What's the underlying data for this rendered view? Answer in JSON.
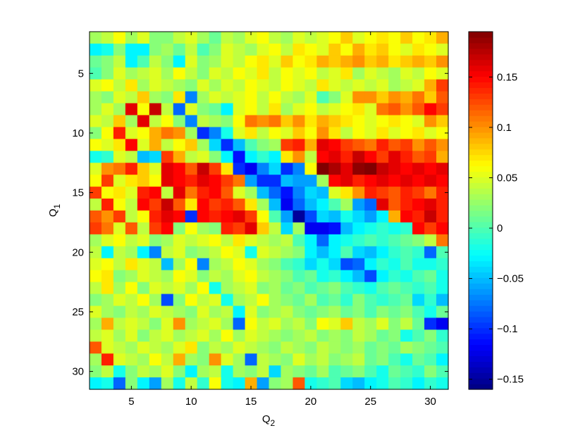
{
  "chart_data": {
    "type": "heatmap",
    "title": "",
    "xlabel": "Q",
    "xlabel_sub": "2",
    "ylabel": "Q",
    "ylabel_sub": "1",
    "xlim": [
      1.5,
      31.5
    ],
    "ylim": [
      1.5,
      31.5
    ],
    "x_ticks": [
      5,
      10,
      15,
      20,
      25,
      30
    ],
    "y_ticks": [
      5,
      10,
      15,
      20,
      25,
      30
    ],
    "y_axis_reversed": true,
    "colormap": "jet",
    "colorbar": {
      "min": -0.16,
      "max": 0.195,
      "ticks": [
        0.15,
        0.1,
        0.05,
        0,
        -0.05,
        -0.1,
        -0.15
      ],
      "tick_labels": [
        "0.15",
        "0.1",
        "0.05",
        "0",
        "−0.05",
        "−0.1",
        "−0.15"
      ]
    },
    "rows_Q1": [
      2,
      3,
      4,
      5,
      6,
      7,
      8,
      9,
      10,
      11,
      12,
      13,
      14,
      15,
      16,
      17,
      18,
      19,
      20,
      21,
      22,
      23,
      24,
      25,
      26,
      27,
      28,
      29,
      30,
      31
    ],
    "cols_Q2": [
      2,
      3,
      4,
      5,
      6,
      7,
      8,
      9,
      10,
      11,
      12,
      13,
      14,
      15,
      16,
      17,
      18,
      19,
      20,
      21,
      22,
      23,
      24,
      25,
      26,
      27,
      28,
      29,
      30,
      31
    ],
    "values": [
      [
        0.03,
        0.04,
        0.06,
        0.03,
        0.05,
        0.02,
        0.02,
        0.04,
        0.05,
        0.03,
        0.01,
        0.04,
        0.03,
        0.05,
        0.06,
        0.04,
        0.03,
        0.05,
        0.04,
        0.05,
        0.06,
        0.08,
        0.05,
        0.06,
        0.07,
        0.06,
        0.08,
        0.06,
        0.07,
        0.09
      ],
      [
        -0.03,
        -0.02,
        0.02,
        -0.03,
        -0.03,
        0.02,
        0.03,
        0.01,
        0.04,
        0.0,
        0.02,
        0.05,
        0.04,
        0.03,
        0.05,
        0.06,
        0.04,
        0.07,
        0.06,
        0.05,
        0.08,
        0.06,
        0.09,
        0.07,
        0.08,
        0.06,
        0.05,
        0.07,
        0.06,
        0.05
      ],
      [
        0.01,
        0.02,
        0.04,
        -0.03,
        0.0,
        0.04,
        0.02,
        -0.03,
        0.05,
        0.02,
        0.03,
        0.05,
        0.04,
        0.06,
        0.07,
        0.05,
        0.08,
        0.06,
        0.07,
        0.09,
        0.08,
        0.09,
        0.1,
        0.08,
        0.09,
        0.07,
        0.08,
        0.09,
        0.08,
        0.1
      ],
      [
        0.0,
        0.02,
        0.05,
        0.03,
        0.04,
        0.05,
        0.03,
        0.06,
        0.04,
        0.02,
        0.05,
        0.04,
        0.06,
        0.05,
        0.07,
        0.04,
        0.06,
        0.05,
        0.06,
        0.04,
        0.05,
        0.07,
        0.03,
        0.05,
        0.04,
        0.03,
        0.05,
        0.04,
        0.06,
        0.05
      ],
      [
        0.05,
        0.06,
        0.04,
        0.07,
        0.03,
        0.05,
        0.04,
        0.03,
        0.02,
        0.05,
        0.03,
        0.05,
        0.04,
        0.06,
        0.05,
        0.04,
        0.06,
        0.05,
        0.04,
        0.07,
        0.05,
        0.04,
        0.05,
        0.04,
        0.05,
        0.03,
        0.04,
        0.05,
        0.09,
        0.13
      ],
      [
        0.03,
        0.02,
        0.05,
        0.04,
        0.08,
        0.03,
        0.02,
        0.07,
        -0.07,
        0.03,
        0.05,
        0.04,
        0.05,
        0.06,
        0.04,
        0.06,
        0.04,
        0.03,
        0.05,
        0.0,
        0.02,
        0.05,
        0.1,
        0.1,
        0.08,
        0.1,
        0.09,
        0.11,
        0.08,
        0.12
      ],
      [
        0.03,
        0.05,
        0.03,
        0.16,
        0.06,
        0.17,
        0.04,
        -0.08,
        0.05,
        0.02,
        0.01,
        -0.03,
        0.05,
        0.06,
        0.04,
        0.07,
        0.03,
        0.05,
        0.06,
        0.04,
        0.05,
        0.06,
        0.07,
        0.05,
        0.11,
        0.12,
        0.1,
        0.12,
        0.15,
        0.13
      ],
      [
        0.05,
        0.04,
        0.08,
        0.03,
        0.16,
        0.04,
        0.06,
        0.02,
        -0.07,
        0.04,
        0.03,
        0.02,
        0.06,
        0.11,
        0.1,
        0.11,
        0.08,
        0.1,
        0.07,
        0.09,
        0.08,
        0.07,
        0.06,
        0.05,
        0.06,
        0.07,
        0.06,
        0.05,
        0.1,
        0.08
      ],
      [
        0.02,
        0.06,
        0.14,
        0.05,
        0.06,
        0.09,
        0.11,
        0.1,
        0.03,
        -0.1,
        -0.07,
        -0.02,
        0.05,
        0.07,
        0.04,
        0.06,
        0.05,
        0.08,
        0.06,
        0.1,
        0.07,
        0.04,
        0.06,
        0.05,
        0.07,
        0.05,
        0.06,
        0.07,
        0.05,
        0.06
      ],
      [
        0.06,
        0.05,
        0.07,
        0.15,
        0.05,
        0.09,
        0.04,
        0.06,
        0.08,
        0.03,
        -0.04,
        -0.1,
        -0.05,
        0.0,
        0.02,
        0.03,
        0.13,
        0.14,
        0.09,
        0.16,
        0.15,
        0.13,
        0.12,
        0.11,
        0.14,
        0.12,
        0.13,
        0.1,
        0.12,
        0.1
      ],
      [
        -0.02,
        -0.01,
        0.05,
        0.04,
        -0.05,
        -0.04,
        0.13,
        0.09,
        0.04,
        0.05,
        0.02,
        -0.03,
        -0.11,
        -0.03,
        -0.01,
        -0.03,
        0.07,
        0.1,
        0.04,
        0.15,
        0.16,
        0.14,
        0.17,
        0.15,
        0.13,
        0.16,
        0.14,
        0.12,
        0.13,
        0.09
      ],
      [
        0.05,
        0.1,
        0.11,
        0.14,
        0.08,
        0.05,
        0.16,
        0.15,
        0.12,
        0.17,
        0.13,
        0.07,
        -0.1,
        -0.12,
        -0.07,
        -0.04,
        -0.1,
        -0.07,
        0.06,
        0.2,
        0.18,
        0.16,
        0.19,
        0.2,
        0.17,
        0.16,
        0.15,
        0.16,
        0.15,
        0.16
      ],
      [
        0.06,
        0.13,
        0.05,
        0.07,
        0.08,
        0.06,
        0.16,
        0.15,
        0.14,
        0.16,
        0.15,
        0.13,
        0.11,
        -0.06,
        -0.1,
        -0.1,
        -0.05,
        -0.06,
        -0.06,
        0.03,
        0.15,
        0.16,
        0.14,
        0.15,
        0.16,
        0.15,
        0.16,
        0.15,
        0.16,
        0.15
      ],
      [
        0.13,
        0.06,
        0.07,
        0.05,
        0.14,
        0.15,
        0.04,
        0.16,
        0.11,
        0.14,
        0.15,
        0.12,
        0.05,
        0.03,
        -0.05,
        -0.08,
        -0.11,
        -0.07,
        -0.04,
        -0.05,
        0.05,
        0.07,
        0.1,
        0.14,
        0.13,
        0.12,
        0.14,
        0.13,
        0.11,
        0.14
      ],
      [
        0.04,
        0.14,
        0.06,
        0.04,
        0.15,
        0.13,
        0.17,
        0.12,
        0.07,
        0.15,
        0.13,
        0.14,
        0.12,
        0.07,
        0.03,
        -0.05,
        -0.12,
        -0.08,
        -0.05,
        -0.03,
        0.0,
        0.03,
        -0.06,
        -0.08,
        0.16,
        0.12,
        0.14,
        0.15,
        0.16,
        0.14
      ],
      [
        0.12,
        0.1,
        0.13,
        0.04,
        0.06,
        0.14,
        0.16,
        0.15,
        -0.1,
        0.15,
        0.14,
        0.15,
        0.16,
        0.13,
        0.06,
        0.0,
        -0.06,
        -0.15,
        -0.09,
        -0.04,
        -0.05,
        -0.02,
        -0.04,
        -0.06,
        -0.03,
        0.09,
        0.15,
        0.14,
        0.17,
        0.14
      ],
      [
        0.13,
        0.11,
        0.05,
        0.12,
        0.04,
        0.13,
        0.15,
        0.02,
        0.06,
        0.03,
        0.02,
        0.14,
        0.13,
        0.16,
        0.08,
        0.04,
        -0.04,
        0.03,
        -0.12,
        -0.12,
        -0.11,
        -0.05,
        -0.03,
        -0.02,
        -0.01,
        -0.02,
        -0.01,
        0.15,
        0.13,
        0.15
      ],
      [
        0.03,
        0.05,
        0.06,
        0.04,
        0.05,
        0.02,
        0.03,
        0.05,
        0.04,
        0.05,
        0.06,
        0.04,
        0.07,
        0.05,
        0.04,
        0.03,
        0.04,
        0.0,
        -0.03,
        -0.08,
        -0.03,
        -0.02,
        -0.01,
        0.0,
        -0.01,
        0.0,
        0.01,
        0.02,
        0.04,
        0.11
      ],
      [
        0.04,
        -0.03,
        0.04,
        0.03,
        -0.03,
        -0.07,
        0.04,
        0.05,
        0.02,
        0.03,
        0.04,
        0.06,
        0.05,
        -0.02,
        0.05,
        0.04,
        0.03,
        0.02,
        -0.03,
        -0.05,
        -0.03,
        0.0,
        -0.04,
        -0.05,
        -0.03,
        -0.01,
        0.0,
        -0.01,
        -0.08,
        0.0
      ],
      [
        0.05,
        0.06,
        0.04,
        0.07,
        0.05,
        0.04,
        -0.05,
        0.03,
        0.06,
        -0.07,
        0.03,
        0.04,
        0.06,
        0.05,
        0.03,
        0.02,
        0.0,
        -0.01,
        -0.04,
        -0.02,
        -0.04,
        -0.09,
        -0.08,
        -0.03,
        -0.01,
        -0.02,
        0.0,
        -0.02,
        -0.02,
        -0.01
      ],
      [
        0.06,
        0.07,
        0.02,
        0.03,
        0.05,
        0.04,
        0.03,
        0.06,
        0.05,
        0.02,
        0.04,
        0.03,
        0.05,
        0.06,
        0.04,
        0.03,
        0.02,
        0.0,
        0.01,
        -0.02,
        -0.01,
        -0.03,
        -0.05,
        -0.09,
        -0.03,
        -0.01,
        -0.02,
        0.0,
        0.01,
        -0.02
      ],
      [
        0.04,
        0.07,
        0.03,
        0.06,
        0.02,
        0.05,
        0.04,
        0.05,
        0.03,
        0.06,
        -0.02,
        0.03,
        0.04,
        0.05,
        0.02,
        0.03,
        0.01,
        0.02,
        0.0,
        0.01,
        0.02,
        0.0,
        -0.01,
        -0.02,
        0.0,
        0.01,
        0.0,
        -0.01,
        0.0,
        -0.02
      ],
      [
        0.02,
        0.03,
        0.05,
        0.04,
        0.06,
        0.03,
        -0.09,
        0.02,
        0.06,
        0.04,
        0.05,
        -0.02,
        0.03,
        0.04,
        0.06,
        0.03,
        0.02,
        0.01,
        0.03,
        0.0,
        0.01,
        -0.01,
        0.02,
        0.0,
        -0.01,
        0.0,
        0.01,
        -0.04,
        -0.01,
        -0.05
      ],
      [
        0.05,
        0.03,
        0.02,
        0.04,
        0.03,
        0.05,
        0.04,
        0.03,
        0.02,
        0.05,
        0.03,
        0.04,
        -0.03,
        0.05,
        0.02,
        0.03,
        0.04,
        0.02,
        0.01,
        0.02,
        0.03,
        0.01,
        0.02,
        0.0,
        0.02,
        0.01,
        0.02,
        0.0,
        -0.02,
        0.01
      ],
      [
        0.03,
        0.09,
        0.04,
        0.05,
        0.04,
        0.02,
        0.05,
        0.1,
        0.03,
        0.04,
        0.05,
        0.03,
        -0.08,
        0.06,
        0.04,
        0.05,
        0.03,
        0.04,
        0.02,
        0.06,
        0.05,
        0.08,
        0.04,
        0.03,
        0.05,
        0.02,
        0.04,
        0.01,
        -0.1,
        -0.12
      ],
      [
        0.04,
        0.05,
        0.03,
        0.05,
        0.02,
        0.04,
        0.05,
        0.03,
        0.04,
        0.05,
        0.03,
        0.06,
        0.03,
        0.05,
        0.04,
        0.03,
        0.02,
        0.03,
        0.04,
        0.02,
        0.03,
        0.02,
        0.04,
        0.03,
        0.01,
        0.02,
        -0.02,
        0.0,
        0.02,
        -0.01
      ],
      [
        0.12,
        0.05,
        0.04,
        0.03,
        0.05,
        0.04,
        0.03,
        0.05,
        0.07,
        0.02,
        0.04,
        0.03,
        0.05,
        0.04,
        0.03,
        0.02,
        0.04,
        0.03,
        0.02,
        0.04,
        0.03,
        0.02,
        0.03,
        0.01,
        0.02,
        0.01,
        0.03,
        0.02,
        0.01,
        0.0
      ],
      [
        0.03,
        0.14,
        0.05,
        0.04,
        0.03,
        0.06,
        0.04,
        0.09,
        0.03,
        0.02,
        0.1,
        0.05,
        0.03,
        -0.08,
        0.04,
        0.03,
        0.02,
        0.05,
        0.03,
        0.04,
        0.02,
        0.03,
        0.04,
        0.01,
        0.02,
        0.0,
        -0.02,
        0.01,
        0.0,
        -0.03
      ],
      [
        0.02,
        0.04,
        -0.02,
        0.02,
        0.04,
        0.03,
        0.05,
        0.02,
        -0.03,
        0.03,
        0.04,
        -0.02,
        0.03,
        0.02,
        0.04,
        -0.04,
        0.03,
        0.02,
        0.01,
        0.03,
        0.0,
        0.01,
        0.02,
        0.0,
        -0.02,
        0.01,
        0.0,
        -0.01,
        0.02,
        0.0
      ],
      [
        -0.03,
        -0.02,
        -0.08,
        0.02,
        -0.03,
        -0.06,
        0.03,
        -0.02,
        0.04,
        -0.01,
        0.06,
        -0.02,
        -0.03,
        0.09,
        -0.06,
        0.02,
        0.03,
        0.12,
        -0.02,
        -0.01,
        0.0,
        -0.04,
        -0.05,
        -0.03,
        -0.02,
        0.0,
        -0.01,
        -0.03,
        -0.01,
        -0.02
      ]
    ]
  }
}
